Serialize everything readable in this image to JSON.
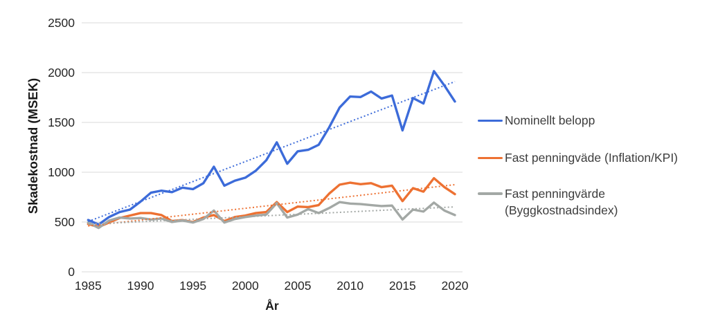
{
  "chart_data": {
    "type": "line",
    "title": "",
    "xlabel": "År",
    "ylabel": "Skadekostnad (MSEK)",
    "x": [
      1985,
      1986,
      1987,
      1988,
      1989,
      1990,
      1991,
      1992,
      1993,
      1994,
      1995,
      1996,
      1997,
      1998,
      1999,
      2000,
      2001,
      2002,
      2003,
      2004,
      2005,
      2006,
      2007,
      2008,
      2009,
      2010,
      2011,
      2012,
      2013,
      2014,
      2015,
      2016,
      2017,
      2018,
      2019,
      2020
    ],
    "x_ticks": [
      1985,
      1990,
      1995,
      2000,
      2005,
      2010,
      2015,
      2020
    ],
    "y_ticks": [
      0,
      500,
      1000,
      1500,
      2000,
      2500
    ],
    "xlim": [
      1985,
      2020
    ],
    "ylim": [
      0,
      2500
    ],
    "grid": "horizontal-only",
    "gridline_color": "#d9d9d9",
    "legend_position": "right",
    "series": [
      {
        "name": "Nominellt belopp",
        "color": "#3c6bd9",
        "style": "solid",
        "values": [
          520,
          475,
          550,
          600,
          625,
          705,
          795,
          815,
          800,
          845,
          830,
          890,
          1055,
          865,
          915,
          945,
          1015,
          1120,
          1300,
          1085,
          1210,
          1225,
          1275,
          1450,
          1650,
          1760,
          1755,
          1810,
          1740,
          1770,
          1420,
          1745,
          1690,
          2015,
          1870,
          1710
        ]
      },
      {
        "name": "Fast penningväde (Inflation/KPI)",
        "color": "#ed7132",
        "style": "solid",
        "values": [
          480,
          450,
          495,
          540,
          565,
          590,
          590,
          570,
          510,
          520,
          500,
          545,
          570,
          510,
          550,
          565,
          590,
          600,
          700,
          600,
          655,
          650,
          670,
          785,
          875,
          895,
          880,
          890,
          850,
          865,
          710,
          840,
          805,
          940,
          850,
          780
        ]
      },
      {
        "name": "Fast penningvärde (Byggkostnadsindex)",
        "color": "#a3a8a5",
        "style": "solid",
        "values": [
          495,
          440,
          515,
          545,
          535,
          540,
          525,
          535,
          500,
          515,
          495,
          530,
          615,
          495,
          530,
          550,
          565,
          575,
          690,
          545,
          575,
          630,
          590,
          640,
          700,
          685,
          680,
          670,
          660,
          665,
          525,
          625,
          605,
          695,
          615,
          570
        ]
      }
    ],
    "trendlines": [
      {
        "series": "Nominellt belopp",
        "color": "#3c6bd9",
        "style": "dotted",
        "start": 505,
        "end": 1910
      },
      {
        "series": "Fast penningväde (Inflation/KPI)",
        "color": "#ed7132",
        "style": "dotted",
        "start": 460,
        "end": 875
      },
      {
        "series": "Fast penningvärde (Byggkostnadsindex)",
        "color": "#a3a8a5",
        "style": "dotted",
        "start": 478,
        "end": 652
      }
    ]
  },
  "legend": {
    "items": [
      {
        "label": "Nominellt belopp",
        "label2": "",
        "color": "#3c6bd9"
      },
      {
        "label": "Fast penningväde (Inflation/KPI)",
        "label2": "",
        "color": "#ed7132"
      },
      {
        "label": "Fast penningvärde",
        "label2": "(Byggkostnadsindex)",
        "color": "#a3a8a5"
      }
    ]
  }
}
